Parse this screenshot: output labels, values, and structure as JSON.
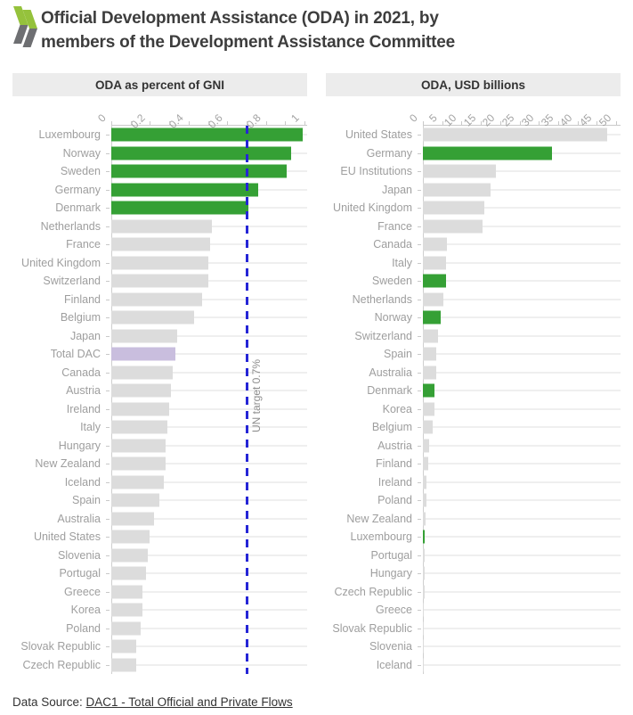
{
  "header": {
    "logo_icon": "oecd-chevrons-icon",
    "title_lines": [
      "Official Development Assistance (ODA) in 2021, by",
      "members of the Development Assistance Committee"
    ]
  },
  "footer": {
    "prefix": "Data Source: ",
    "link_text": "DAC1 - Total Official and Private Flows"
  },
  "colors": {
    "green": "#35a035",
    "gray": "#dcdcdc",
    "purple": "#c9bede",
    "target_blue": "#2525d6",
    "header_bg": "#ececec",
    "logo_green": "#95c23c",
    "logo_gray": "#6e6f72"
  },
  "chart_data": [
    {
      "type": "bar",
      "orientation": "horizontal",
      "title": "ODA as percent of GNI",
      "xlim": [
        0,
        1
      ],
      "xticks": [
        0,
        0.2,
        0.4,
        0.6,
        0.8,
        1
      ],
      "xtick_labels": [
        "0",
        "0.2",
        "0.4",
        "0.6",
        "0.8",
        "1"
      ],
      "minor_xticks": [
        0.1,
        0.3,
        0.5,
        0.7,
        0.9
      ],
      "grid": true,
      "target_line": {
        "value": 0.7,
        "label": "UN target 0.7%"
      },
      "bars": [
        {
          "label": "Luxembourg",
          "value": 0.99,
          "tone": "green"
        },
        {
          "label": "Norway",
          "value": 0.93,
          "tone": "green"
        },
        {
          "label": "Sweden",
          "value": 0.91,
          "tone": "green"
        },
        {
          "label": "Germany",
          "value": 0.76,
          "tone": "green"
        },
        {
          "label": "Denmark",
          "value": 0.71,
          "tone": "green"
        },
        {
          "label": "Netherlands",
          "value": 0.52,
          "tone": "gray"
        },
        {
          "label": "France",
          "value": 0.51,
          "tone": "gray"
        },
        {
          "label": "United Kingdom",
          "value": 0.5,
          "tone": "gray"
        },
        {
          "label": "Switzerland",
          "value": 0.5,
          "tone": "gray"
        },
        {
          "label": "Finland",
          "value": 0.47,
          "tone": "gray"
        },
        {
          "label": "Belgium",
          "value": 0.43,
          "tone": "gray"
        },
        {
          "label": "Japan",
          "value": 0.34,
          "tone": "gray"
        },
        {
          "label": "Total DAC",
          "value": 0.33,
          "tone": "purple"
        },
        {
          "label": "Canada",
          "value": 0.32,
          "tone": "gray"
        },
        {
          "label": "Austria",
          "value": 0.31,
          "tone": "gray"
        },
        {
          "label": "Ireland",
          "value": 0.3,
          "tone": "gray"
        },
        {
          "label": "Italy",
          "value": 0.29,
          "tone": "gray"
        },
        {
          "label": "Hungary",
          "value": 0.28,
          "tone": "gray"
        },
        {
          "label": "New Zealand",
          "value": 0.28,
          "tone": "gray"
        },
        {
          "label": "Iceland",
          "value": 0.27,
          "tone": "gray"
        },
        {
          "label": "Spain",
          "value": 0.25,
          "tone": "gray"
        },
        {
          "label": "Australia",
          "value": 0.22,
          "tone": "gray"
        },
        {
          "label": "United States",
          "value": 0.2,
          "tone": "gray"
        },
        {
          "label": "Slovenia",
          "value": 0.19,
          "tone": "gray"
        },
        {
          "label": "Portugal",
          "value": 0.18,
          "tone": "gray"
        },
        {
          "label": "Greece",
          "value": 0.16,
          "tone": "gray"
        },
        {
          "label": "Korea",
          "value": 0.16,
          "tone": "gray"
        },
        {
          "label": "Poland",
          "value": 0.15,
          "tone": "gray"
        },
        {
          "label": "Slovak Republic",
          "value": 0.13,
          "tone": "gray"
        },
        {
          "label": "Czech Republic",
          "value": 0.13,
          "tone": "gray"
        }
      ]
    },
    {
      "type": "bar",
      "orientation": "horizontal",
      "title": "ODA, USD billions",
      "xlim": [
        0,
        50
      ],
      "xticks": [
        0,
        5,
        10,
        15,
        20,
        25,
        30,
        35,
        40,
        45,
        50
      ],
      "xtick_labels": [
        "0",
        "5",
        "10",
        "15",
        "20",
        "25",
        "30",
        "35",
        "40",
        "45",
        "50"
      ],
      "minor_xticks": [],
      "grid": true,
      "bars": [
        {
          "label": "United States",
          "value": 47.8,
          "tone": "gray"
        },
        {
          "label": "Germany",
          "value": 33.3,
          "tone": "green"
        },
        {
          "label": "EU Institutions",
          "value": 19.0,
          "tone": "gray"
        },
        {
          "label": "Japan",
          "value": 17.6,
          "tone": "gray"
        },
        {
          "label": "United Kingdom",
          "value": 15.8,
          "tone": "gray"
        },
        {
          "label": "France",
          "value": 15.4,
          "tone": "gray"
        },
        {
          "label": "Canada",
          "value": 6.3,
          "tone": "gray"
        },
        {
          "label": "Italy",
          "value": 6.0,
          "tone": "gray"
        },
        {
          "label": "Sweden",
          "value": 5.9,
          "tone": "green"
        },
        {
          "label": "Netherlands",
          "value": 5.3,
          "tone": "gray"
        },
        {
          "label": "Norway",
          "value": 4.7,
          "tone": "green"
        },
        {
          "label": "Switzerland",
          "value": 3.9,
          "tone": "gray"
        },
        {
          "label": "Spain",
          "value": 3.5,
          "tone": "gray"
        },
        {
          "label": "Australia",
          "value": 3.4,
          "tone": "gray"
        },
        {
          "label": "Denmark",
          "value": 2.9,
          "tone": "green"
        },
        {
          "label": "Korea",
          "value": 2.9,
          "tone": "gray"
        },
        {
          "label": "Belgium",
          "value": 2.6,
          "tone": "gray"
        },
        {
          "label": "Austria",
          "value": 1.5,
          "tone": "gray"
        },
        {
          "label": "Finland",
          "value": 1.4,
          "tone": "gray"
        },
        {
          "label": "Ireland",
          "value": 1.0,
          "tone": "gray"
        },
        {
          "label": "Poland",
          "value": 0.97,
          "tone": "gray"
        },
        {
          "label": "New Zealand",
          "value": 0.68,
          "tone": "gray"
        },
        {
          "label": "Luxembourg",
          "value": 0.54,
          "tone": "green"
        },
        {
          "label": "Portugal",
          "value": 0.45,
          "tone": "gray"
        },
        {
          "label": "Hungary",
          "value": 0.42,
          "tone": "gray"
        },
        {
          "label": "Czech Republic",
          "value": 0.36,
          "tone": "gray"
        },
        {
          "label": "Greece",
          "value": 0.3,
          "tone": "gray"
        },
        {
          "label": "Slovak Republic",
          "value": 0.15,
          "tone": "gray"
        },
        {
          "label": "Slovenia",
          "value": 0.12,
          "tone": "gray"
        },
        {
          "label": "Iceland",
          "value": 0.07,
          "tone": "gray"
        }
      ]
    }
  ]
}
